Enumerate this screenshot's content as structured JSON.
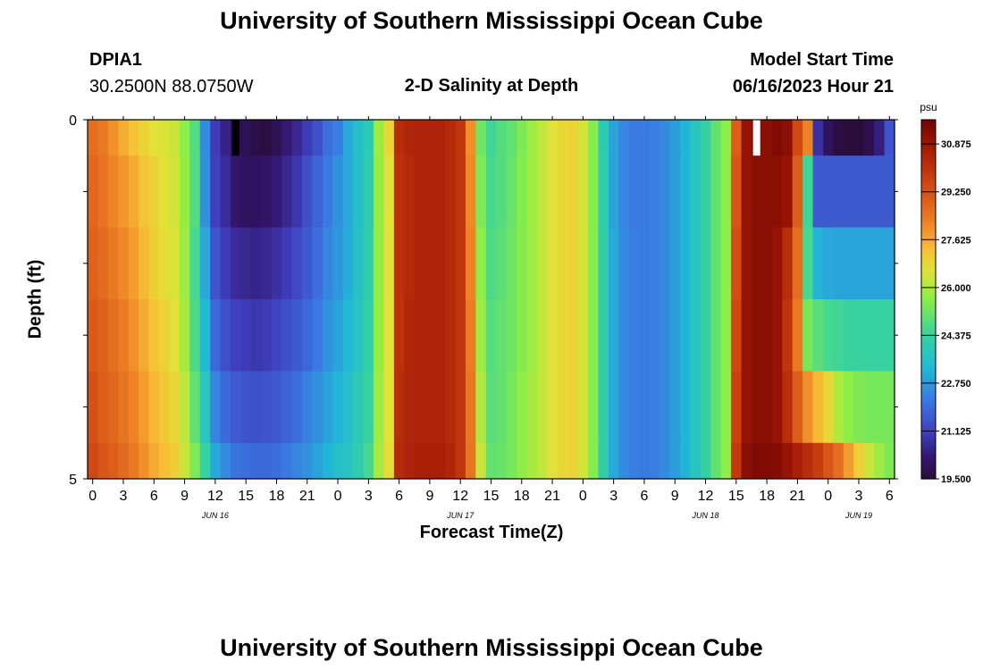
{
  "page": {
    "title_top": "University of Southern Mississippi Ocean Cube",
    "title_bottom": "University of Southern Mississippi Ocean Cube",
    "station": "DPIA1",
    "coords": "30.2500N  88.0750W",
    "model_start_label": "Model Start Time",
    "model_start_value": "06/16/2023 Hour 21"
  },
  "chart_data": {
    "type": "heatmap",
    "title": "2-D Salinity at Depth",
    "xlabel": "Forecast Time(Z)",
    "ylabel": "Depth (ft)",
    "x_hours_from_jun16_00": [
      0,
      1,
      2,
      3,
      4,
      5,
      6,
      7,
      8,
      9,
      10,
      11,
      12,
      13,
      14,
      15,
      16,
      17,
      18,
      19,
      20,
      21,
      22,
      23,
      24,
      25,
      26,
      27,
      28,
      29,
      30,
      31,
      32,
      33,
      34,
      35,
      36,
      37,
      38,
      39,
      40,
      41,
      42,
      43,
      44,
      45,
      46,
      47,
      48,
      49,
      50,
      51,
      52,
      53,
      54,
      55,
      56,
      57,
      58,
      59,
      60,
      61,
      62,
      63,
      64,
      65,
      66,
      67,
      68,
      69,
      70,
      71,
      72,
      73,
      74,
      75,
      76,
      77,
      78
    ],
    "depth_bins_ft": [
      [
        0,
        0.5
      ],
      [
        0.5,
        1.5
      ],
      [
        1.5,
        2.5
      ],
      [
        2.5,
        3.5
      ],
      [
        3.5,
        4.5
      ],
      [
        4.5,
        5
      ]
    ],
    "salinity_psu": [
      [
        28.6,
        28.4,
        28.0,
        27.6,
        27.2,
        26.9,
        26.6,
        26.5,
        26.3,
        25.6,
        24.8,
        22.5,
        21.0,
        20.5,
        19.9,
        19.9,
        19.7,
        19.6,
        19.9,
        20.3,
        20.6,
        21.0,
        21.4,
        22.0,
        22.3,
        23.0,
        23.5,
        24.0,
        25.8,
        26.8,
        30.2,
        30.4,
        30.5,
        30.5,
        30.5,
        30.3,
        30.0,
        28.0,
        25.2,
        24.5,
        24.8,
        25.0,
        25.4,
        25.8,
        26.2,
        26.6,
        26.8,
        26.9,
        26.4,
        25.5,
        24.0,
        22.9,
        22.4,
        22.2,
        22.2,
        22.3,
        22.5,
        22.8,
        23.2,
        23.7,
        24.3,
        25.0,
        25.6,
        29.0,
        31.0,
        31.2,
        31.2,
        31.4,
        31.2,
        29.5,
        28.2,
        20.8,
        20.0,
        19.6,
        19.5,
        19.5,
        19.8,
        20.4,
        21.5
      ],
      [
        28.8,
        28.5,
        28.2,
        27.9,
        27.6,
        27.2,
        26.9,
        26.6,
        26.4,
        25.7,
        24.8,
        22.6,
        21.1,
        20.7,
        20.2,
        20.0,
        20.0,
        20.1,
        20.3,
        20.6,
        20.9,
        21.4,
        21.8,
        22.2,
        22.6,
        23.0,
        23.5,
        24.1,
        25.7,
        26.6,
        30.1,
        30.3,
        30.5,
        30.5,
        30.5,
        30.3,
        30.0,
        28.1,
        25.4,
        24.6,
        24.8,
        25.1,
        25.5,
        25.8,
        26.2,
        26.6,
        26.8,
        26.9,
        26.4,
        25.5,
        24.1,
        22.9,
        22.4,
        22.2,
        22.2,
        22.3,
        22.5,
        22.8,
        23.2,
        23.7,
        24.3,
        25.0,
        25.6,
        29.2,
        31.0,
        31.2,
        31.2,
        31.2,
        31.0,
        29.0,
        24.5,
        21.6,
        21.6,
        21.6,
        21.6,
        21.6,
        21.6,
        21.6,
        21.6
      ],
      [
        28.9,
        28.7,
        28.4,
        28.1,
        27.8,
        27.4,
        27.0,
        26.7,
        26.5,
        25.8,
        24.6,
        23.0,
        21.5,
        21.0,
        20.7,
        20.6,
        20.5,
        20.6,
        20.8,
        21.0,
        21.3,
        21.6,
        22.0,
        22.4,
        22.7,
        23.1,
        23.6,
        24.2,
        25.7,
        26.6,
        30.1,
        30.3,
        30.5,
        30.5,
        30.5,
        30.3,
        30.0,
        28.2,
        25.6,
        24.7,
        24.9,
        25.2,
        25.5,
        25.8,
        26.2,
        26.6,
        26.8,
        26.9,
        26.4,
        25.5,
        24.2,
        23.0,
        22.5,
        22.3,
        22.2,
        22.3,
        22.5,
        22.8,
        23.2,
        23.7,
        24.3,
        25.0,
        25.6,
        29.4,
        31.0,
        31.2,
        31.2,
        31.0,
        30.2,
        28.6,
        24.6,
        23.2,
        23.0,
        22.9,
        22.9,
        22.9,
        22.9,
        22.9,
        22.9
      ],
      [
        29.1,
        28.9,
        28.6,
        28.3,
        28.0,
        27.6,
        27.2,
        26.9,
        26.6,
        25.9,
        24.7,
        23.3,
        21.9,
        21.4,
        21.1,
        21.0,
        20.9,
        21.0,
        21.2,
        21.4,
        21.6,
        21.9,
        22.2,
        22.6,
        22.9,
        23.3,
        23.7,
        24.3,
        25.7,
        26.6,
        30.1,
        30.4,
        30.5,
        30.5,
        30.5,
        30.3,
        30.0,
        28.3,
        25.8,
        24.8,
        25.0,
        25.2,
        25.5,
        25.8,
        26.2,
        26.6,
        26.8,
        26.9,
        26.4,
        25.5,
        24.2,
        23.0,
        22.5,
        22.3,
        22.2,
        22.3,
        22.5,
        22.8,
        23.2,
        23.7,
        24.3,
        25.0,
        25.6,
        29.5,
        31.0,
        31.2,
        31.2,
        31.0,
        30.0,
        28.4,
        25.3,
        24.9,
        24.6,
        24.5,
        24.4,
        24.4,
        24.4,
        24.4,
        24.4
      ],
      [
        29.3,
        29.0,
        28.8,
        28.5,
        28.2,
        27.8,
        27.4,
        27.1,
        26.8,
        26.1,
        25.0,
        23.8,
        22.4,
        21.9,
        21.6,
        21.5,
        21.4,
        21.5,
        21.6,
        21.8,
        22.0,
        22.3,
        22.6,
        22.9,
        23.2,
        23.5,
        23.9,
        24.4,
        25.8,
        26.6,
        30.2,
        30.4,
        30.5,
        30.5,
        30.5,
        30.3,
        30.0,
        28.4,
        26.0,
        24.9,
        25.0,
        25.3,
        25.6,
        25.9,
        26.2,
        26.6,
        26.8,
        26.9,
        26.4,
        25.5,
        24.2,
        23.0,
        22.5,
        22.3,
        22.2,
        22.3,
        22.5,
        22.8,
        23.2,
        23.7,
        24.3,
        25.0,
        25.6,
        29.7,
        31.0,
        31.2,
        31.2,
        31.0,
        30.2,
        29.0,
        28.0,
        27.4,
        26.8,
        26.0,
        25.6,
        25.4,
        25.3,
        25.3,
        25.3
      ],
      [
        29.5,
        29.2,
        29.0,
        28.7,
        28.4,
        28.0,
        27.6,
        27.3,
        27.0,
        26.3,
        25.4,
        24.4,
        23.0,
        22.5,
        22.1,
        22.0,
        21.9,
        21.9,
        22.0,
        22.2,
        22.4,
        22.6,
        22.9,
        23.2,
        23.5,
        23.7,
        24.1,
        24.6,
        25.9,
        26.7,
        30.3,
        30.5,
        30.6,
        30.6,
        30.6,
        30.4,
        30.0,
        28.5,
        26.3,
        25.0,
        25.1,
        25.3,
        25.6,
        25.9,
        26.2,
        26.6,
        26.8,
        26.9,
        26.4,
        25.5,
        24.2,
        23.0,
        22.5,
        22.3,
        22.2,
        22.3,
        22.5,
        22.8,
        23.2,
        23.7,
        24.3,
        25.0,
        25.6,
        29.9,
        31.2,
        31.4,
        31.4,
        31.3,
        31.0,
        30.6,
        30.2,
        29.8,
        29.2,
        28.6,
        27.8,
        27.0,
        26.3,
        25.8,
        25.4
      ]
    ],
    "missing_cells_depth0_hours": [
      {
        "hour": 14,
        "color": "#000000"
      },
      {
        "hour": 65,
        "color": "#ffffff"
      }
    ],
    "x_tick_labels": [
      "0",
      "3",
      "6",
      "9",
      "12",
      "15",
      "18",
      "21",
      "0",
      "3",
      "6",
      "9",
      "12",
      "15",
      "18",
      "21",
      "0",
      "3",
      "6",
      "9",
      "12",
      "15",
      "18",
      "21",
      "0",
      "3",
      "6"
    ],
    "x_tick_hours": [
      0,
      3,
      6,
      9,
      12,
      15,
      18,
      21,
      24,
      27,
      30,
      33,
      36,
      39,
      42,
      45,
      48,
      51,
      54,
      57,
      60,
      63,
      66,
      69,
      72,
      75,
      78
    ],
    "date_labels": [
      {
        "text": "JUN 16",
        "hour": 12
      },
      {
        "text": "JUN 17",
        "hour": 36
      },
      {
        "text": "JUN 18",
        "hour": 60
      },
      {
        "text": "JUN 19",
        "hour": 75
      }
    ],
    "y_tick_labels": [
      "0",
      "5"
    ],
    "xlim": [
      0,
      78
    ],
    "ylim": [
      0,
      5
    ],
    "colorbar": {
      "unit": "psu",
      "range": [
        19.5,
        31.7
      ],
      "tick_labels": [
        "30.875",
        "29.250",
        "27.625",
        "26.000",
        "24.375",
        "22.750",
        "21.125",
        "19.500"
      ],
      "tick_values": [
        30.875,
        29.25,
        27.625,
        26.0,
        24.375,
        22.75,
        21.125,
        19.5
      ]
    }
  }
}
